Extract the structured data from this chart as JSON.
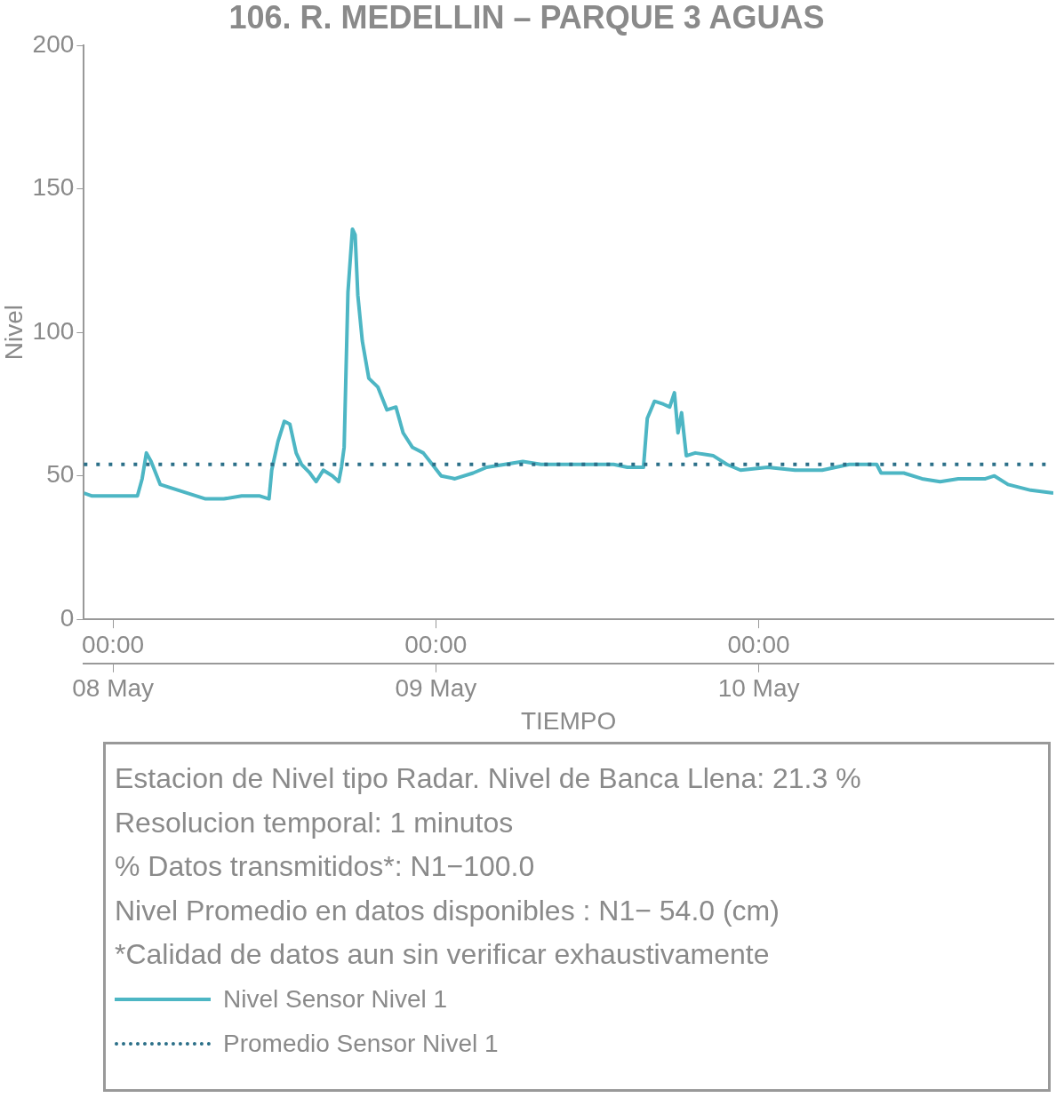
{
  "chart_data": {
    "type": "line",
    "title": "106. R. MEDELLIN – PARQUE 3 AGUAS",
    "xlabel": "TIEMPO",
    "ylabel": "Nivel",
    "x": [
      "--05-07T21:50",
      "--05-07T22:27",
      "--05-08T01:49",
      "--05-08T02:10",
      "--05-08T02:29",
      "--05-08T02:50",
      "--05-08T03:31",
      "--05-08T04:11",
      "--05-08T05:32",
      "--05-08T06:53",
      "--05-08T08:14",
      "--05-08T09:34",
      "--05-08T10:55",
      "--05-08T11:36",
      "--05-08T11:48",
      "--05-08T12:16",
      "--05-08T12:44",
      "--05-08T13:09",
      "--05-08T13:37",
      "--05-08T14:01",
      "--05-08T14:38",
      "--05-08T15:06",
      "--05-08T15:38",
      "--05-08T16:19",
      "--05-08T16:47",
      "--05-08T16:59",
      "--05-08T17:11",
      "--05-08T17:28",
      "--05-08T17:48",
      "--05-08T18:00",
      "--05-08T18:12",
      "--05-08T18:32",
      "--05-08T19:01",
      "--05-08T19:41",
      "--05-08T20:22",
      "--05-08T21:02",
      "--05-08T21:34",
      "--05-08T22:15",
      "--05-08T23:04",
      "--05-08T23:44",
      "--05-09T00:24",
      "--05-09T01:25",
      "--05-09T02:46",
      "--05-09T03:47",
      "--05-09T05:08",
      "--05-09T06:28",
      "--05-09T07:49",
      "--05-09T09:50",
      "--05-09T11:52",
      "--05-09T13:13",
      "--05-09T14:14",
      "--05-09T15:26",
      "--05-09T15:43",
      "--05-09T16:15",
      "--05-09T16:55",
      "--05-09T17:23",
      "--05-09T17:44",
      "--05-09T18:00",
      "--05-09T18:16",
      "--05-09T18:37",
      "--05-09T19:17",
      "--05-09T20:38",
      "--05-09T21:38",
      "--05-09T22:39",
      "--05-10T00:40",
      "--05-10T02:42",
      "--05-10T04:43",
      "--05-10T06:44",
      "--05-10T08:46",
      "--05-10T09:06",
      "--05-10T10:47",
      "--05-10T12:08",
      "--05-10T13:29",
      "--05-10T14:50",
      "--05-10T16:51",
      "--05-10T17:31",
      "--05-10T18:32",
      "--05-10T20:13",
      "--05-10T21:54"
    ],
    "series": [
      {
        "name": "Nivel Sensor Nivel 1",
        "color": "#4db6c4",
        "values": [
          44,
          43,
          43,
          49,
          58,
          55,
          47,
          46,
          44,
          42,
          42,
          43,
          43,
          42,
          52,
          62,
          69,
          68,
          58,
          54,
          51,
          48,
          52,
          50,
          48,
          53,
          60,
          114,
          136,
          134,
          113,
          97,
          84,
          81,
          73,
          74,
          65,
          60,
          58,
          54,
          50,
          49,
          51,
          53,
          54,
          55,
          54,
          54,
          54,
          54,
          53,
          53,
          70,
          76,
          75,
          74,
          79,
          65,
          72,
          57,
          58,
          57,
          54,
          52,
          53,
          52,
          52,
          54,
          54,
          51,
          51,
          49,
          48,
          49,
          49,
          50,
          47,
          45,
          44
        ]
      }
    ],
    "ref_lines": [
      {
        "axis": "y",
        "value": 54,
        "label": "Promedio Sensor Nivel 1",
        "color": "#2b6f88",
        "line_style": "dotted"
      }
    ],
    "xlim": [
      "--05-07T21:50",
      "--05-10T21:54"
    ],
    "xticks": [
      {
        "value": "--05-08T00:00",
        "label": "00:00"
      },
      {
        "value": "--05-09T00:00",
        "label": "00:00"
      },
      {
        "value": "--05-10T00:00",
        "label": "00:00"
      }
    ],
    "x2lim": [
      "--05-07T21:50",
      "--05-10T21:54"
    ],
    "x2ticks": [
      {
        "value": "--05-08T00:00",
        "label": "08 May"
      },
      {
        "value": "--05-09T00:00",
        "label": "09 May"
      },
      {
        "value": "--05-10T00:00",
        "label": "10 May"
      }
    ],
    "ylim": [
      0,
      200
    ],
    "yticks": [
      0,
      50,
      100,
      150,
      200
    ],
    "grid": false,
    "legend": "bottom",
    "line_style": "solid",
    "marker": "none",
    "annotations": [
      "Estacion de Nivel tipo Radar. Nivel de Banca Llena: 21.3 %",
      "Resolucion temporal: 1 minutos",
      "% Datos transmitidos*: N1−100.0",
      "Nivel Promedio en datos disponibles : N1− 54.0 (cm)",
      "*Calidad de datos aun sin verificar exhaustivamente"
    ]
  }
}
